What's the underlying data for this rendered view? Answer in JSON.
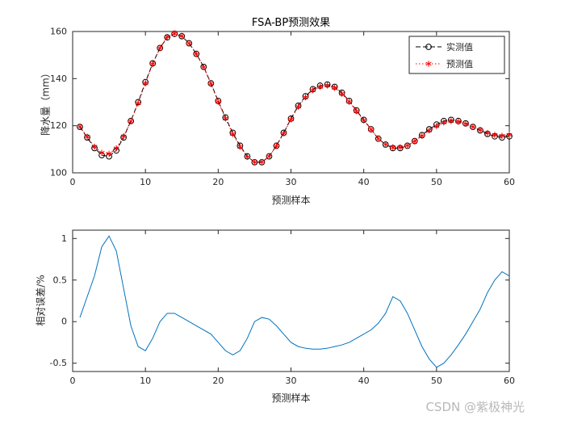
{
  "figure": {
    "watermark": "CSDN @紫极神光"
  },
  "chart_data": [
    {
      "type": "line",
      "title": "FSA-BP预测效果",
      "xlabel": "预测样本",
      "ylabel": "降水量（mm）",
      "xlim": [
        0,
        60
      ],
      "ylim": [
        100,
        160
      ],
      "xticks": [
        0,
        10,
        20,
        30,
        40,
        50,
        60
      ],
      "yticks": [
        100,
        120,
        140,
        160
      ],
      "legend": {
        "position": "northeast"
      },
      "x": [
        1,
        2,
        3,
        4,
        5,
        6,
        7,
        8,
        9,
        10,
        11,
        12,
        13,
        14,
        15,
        16,
        17,
        18,
        19,
        20,
        21,
        22,
        23,
        24,
        25,
        26,
        27,
        28,
        29,
        30,
        31,
        32,
        33,
        34,
        35,
        36,
        37,
        38,
        39,
        40,
        41,
        42,
        43,
        44,
        45,
        46,
        47,
        48,
        49,
        50,
        51,
        52,
        53,
        54,
        55,
        56,
        57,
        58,
        59,
        60
      ],
      "series": [
        {
          "name": "实测值",
          "color": "#000000",
          "marker": "circle",
          "linestyle": "dashed",
          "values": [
            119.5,
            115.0,
            110.5,
            107.5,
            107.0,
            109.5,
            115.0,
            122.0,
            130.0,
            138.5,
            146.5,
            153.0,
            157.5,
            159.0,
            158.0,
            155.0,
            150.5,
            145.0,
            138.0,
            130.5,
            123.5,
            117.0,
            111.5,
            107.0,
            104.5,
            104.5,
            107.0,
            111.5,
            117.0,
            123.0,
            128.5,
            132.5,
            135.5,
            137.0,
            137.5,
            136.5,
            134.0,
            130.5,
            126.5,
            122.5,
            118.5,
            114.5,
            112.0,
            110.5,
            110.5,
            111.5,
            113.5,
            116.0,
            118.5,
            120.5,
            122.0,
            122.5,
            122.0,
            121.0,
            119.5,
            118.0,
            116.5,
            115.5,
            115.0,
            115.5
          ]
        },
        {
          "name": "预测值",
          "color": "#ff0000",
          "marker": "asterisk",
          "linestyle": "dotted",
          "values": [
            119.6,
            115.3,
            111.1,
            108.5,
            108.1,
            110.4,
            115.5,
            121.9,
            129.6,
            138.0,
            146.2,
            153.0,
            157.7,
            159.2,
            158.1,
            155.0,
            150.4,
            144.9,
            137.8,
            130.2,
            123.1,
            116.5,
            111.1,
            106.8,
            104.5,
            104.6,
            107.0,
            111.4,
            116.8,
            122.7,
            128.1,
            132.1,
            135.1,
            136.5,
            137.1,
            136.1,
            133.6,
            130.2,
            126.2,
            122.3,
            118.4,
            114.5,
            112.1,
            110.8,
            110.8,
            111.6,
            113.4,
            115.7,
            118.0,
            119.8,
            121.4,
            122.0,
            121.7,
            120.8,
            119.5,
            118.2,
            116.9,
            116.1,
            115.7,
            116.1
          ]
        }
      ]
    },
    {
      "type": "line",
      "title": "",
      "xlabel": "预测样本",
      "ylabel": "相对误差/%",
      "xlim": [
        0,
        60
      ],
      "ylim": [
        -0.6,
        1.1
      ],
      "xticks": [
        0,
        10,
        20,
        30,
        40,
        50,
        60
      ],
      "yticks": [
        -0.5,
        0,
        0.5,
        1
      ],
      "x": [
        1,
        2,
        3,
        4,
        5,
        6,
        7,
        8,
        9,
        10,
        11,
        12,
        13,
        14,
        15,
        16,
        17,
        18,
        19,
        20,
        21,
        22,
        23,
        24,
        25,
        26,
        27,
        28,
        29,
        30,
        31,
        32,
        33,
        34,
        35,
        36,
        37,
        38,
        39,
        40,
        41,
        42,
        43,
        44,
        45,
        46,
        47,
        48,
        49,
        50,
        51,
        52,
        53,
        54,
        55,
        56,
        57,
        58,
        59,
        60
      ],
      "series": [
        {
          "name": "相对误差",
          "color": "#0072BD",
          "marker": "none",
          "linestyle": "solid",
          "values": [
            0.05,
            0.3,
            0.55,
            0.9,
            1.03,
            0.85,
            0.4,
            -0.05,
            -0.3,
            -0.35,
            -0.2,
            0.0,
            0.1,
            0.1,
            0.05,
            0.0,
            -0.05,
            -0.1,
            -0.15,
            -0.25,
            -0.35,
            -0.4,
            -0.35,
            -0.2,
            0.0,
            0.05,
            0.03,
            -0.05,
            -0.15,
            -0.25,
            -0.3,
            -0.32,
            -0.33,
            -0.33,
            -0.32,
            -0.3,
            -0.28,
            -0.25,
            -0.2,
            -0.15,
            -0.1,
            -0.02,
            0.1,
            0.3,
            0.25,
            0.1,
            -0.1,
            -0.3,
            -0.45,
            -0.55,
            -0.5,
            -0.4,
            -0.28,
            -0.15,
            0.0,
            0.15,
            0.35,
            0.5,
            0.6,
            0.55
          ]
        }
      ]
    }
  ]
}
